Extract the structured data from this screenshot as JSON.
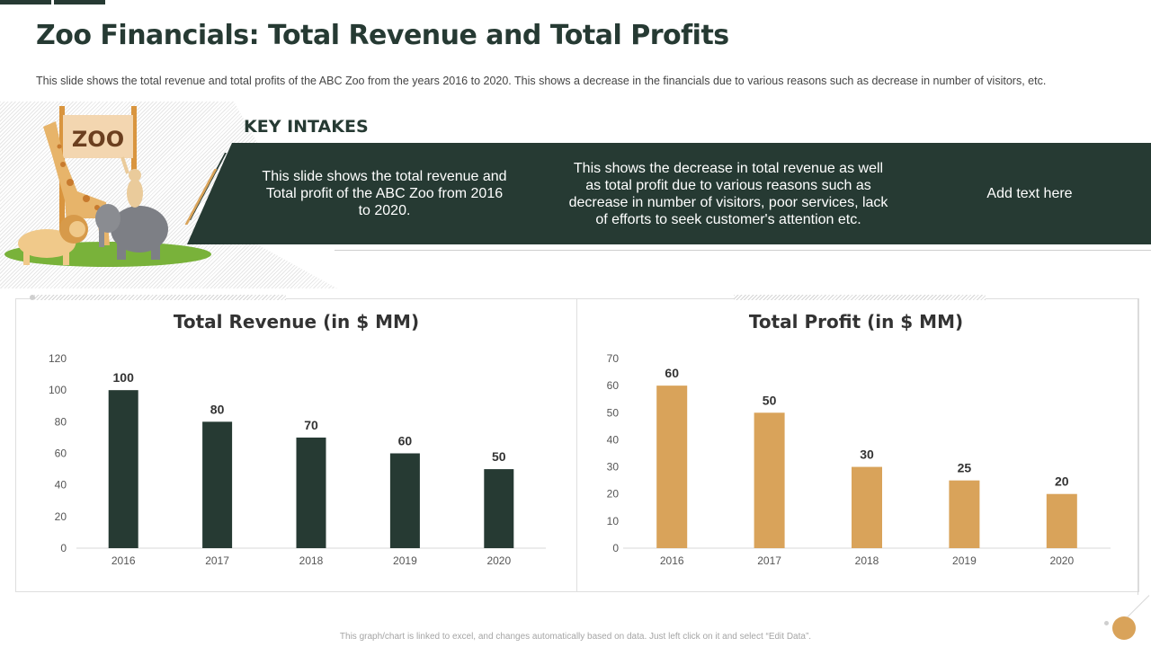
{
  "header": {
    "title": "Zoo Financials: Total Revenue and Total Profits",
    "subtitle": "This slide shows the total revenue  and total profits of the ABC Zoo from the years 2016 to 2020. This shows a decrease in the financials due to various  reasons such as decrease in number of visitors, etc."
  },
  "illustration": {
    "sign_text": "ZOO",
    "icons": [
      "giraffe-icon",
      "lion-icon",
      "elephant-icon",
      "monkey-icon",
      "zoo-sign-icon"
    ]
  },
  "key_intakes": {
    "title": "KEY INTAKES",
    "items": [
      "This slide shows the total revenue and Total profit of the ABC Zoo from 2016 to 2020.",
      "This shows the decrease in total revenue as well as total profit due to various reasons such as decrease in number of visitors, poor services, lack of efforts to seek customer's attention etc.",
      "Add text here"
    ]
  },
  "colors": {
    "primary": "#263a33",
    "accent": "#d9a35a"
  },
  "footer": {
    "note": "This graph/chart is linked to excel, and changes automatically based on data. Just left click on it and select “Edit Data”."
  },
  "chart_data": [
    {
      "type": "bar",
      "title": "Total Revenue (in $ MM)",
      "categories": [
        "2016",
        "2017",
        "2018",
        "2019",
        "2020"
      ],
      "values": [
        100,
        80,
        70,
        60,
        50
      ],
      "yticks": [
        0,
        20,
        40,
        60,
        80,
        100,
        120
      ],
      "ylim": [
        0,
        120
      ],
      "xlabel": "",
      "ylabel": "",
      "color": "#263a33",
      "grid": false,
      "legend": "none"
    },
    {
      "type": "bar",
      "title": "Total Profit (in $ MM)",
      "categories": [
        "2016",
        "2017",
        "2018",
        "2019",
        "2020"
      ],
      "values": [
        60,
        50,
        30,
        25,
        20
      ],
      "yticks": [
        0,
        10,
        20,
        30,
        40,
        50,
        60,
        70
      ],
      "ylim": [
        0,
        70
      ],
      "xlabel": "",
      "ylabel": "",
      "color": "#d9a35a",
      "grid": false,
      "legend": "none"
    }
  ]
}
